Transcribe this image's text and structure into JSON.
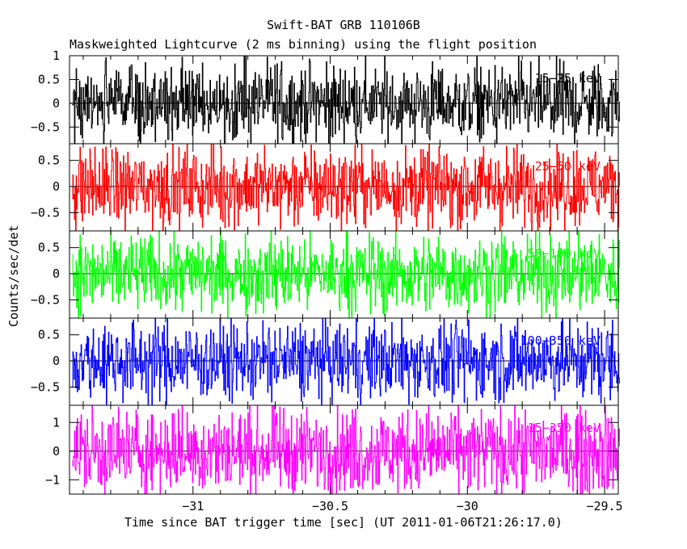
{
  "title": "Swift-BAT GRB 110106B",
  "subtitle": "Maskweighted Lightcurve (2 ms binning) using the flight position",
  "xlabel": "Time since BAT trigger time [sec] (UT 2011-01-06T21:26:17.0)",
  "ylabel": "Counts/sec/det",
  "chart_data": {
    "type": "line",
    "title": "Swift-BAT GRB 110106B",
    "subtitle": "Maskweighted Lightcurve (2 ms binning) using the flight position",
    "xlabel": "Time since BAT trigger time [sec] (UT 2011-01-06T21:26:17.0)",
    "ylabel": "Counts/sec/det",
    "xlim": [
      -31.45,
      -29.45
    ],
    "x_start": -31.44,
    "x_end": -29.444,
    "bin_width": 0.002,
    "x_ticks": [
      -31,
      -30.5,
      -30,
      -29.5
    ],
    "x_tick_labels": [
      "−31",
      "−30.5",
      "−30",
      "−29.5"
    ],
    "panels": [
      {
        "name": "15-25 keV",
        "label": "15−25 keV",
        "color": "#000000",
        "ylim": [
          -0.85,
          1.0
        ],
        "y_ticks": [
          -0.5,
          0,
          0.5,
          1
        ],
        "y_tick_labels": [
          "−0.5",
          "0",
          "0.5",
          "1"
        ],
        "amplitude": 0.42
      },
      {
        "name": "25-50 keV",
        "label": "25−50 keV",
        "color": "#ff0000",
        "ylim": [
          -0.85,
          0.82
        ],
        "y_ticks": [
          -0.5,
          0,
          0.5
        ],
        "y_tick_labels": [
          "−0.5",
          "0",
          "0.5"
        ],
        "amplitude": 0.38
      },
      {
        "name": "50-100 keV",
        "label": "50−100 keV",
        "color": "#00ff00",
        "ylim": [
          -0.85,
          0.82
        ],
        "y_ticks": [
          -0.5,
          0,
          0.5
        ],
        "y_tick_labels": [
          "−0.5",
          "0",
          "0.5"
        ],
        "amplitude": 0.38
      },
      {
        "name": "100-350 keV",
        "label": "100−350 keV",
        "color": "#0000ff",
        "ylim": [
          -0.85,
          0.82
        ],
        "y_ticks": [
          -0.5,
          0,
          0.5
        ],
        "y_tick_labels": [
          "−0.5",
          "0",
          "0.5"
        ],
        "amplitude": 0.38
      },
      {
        "name": "15-350 keV",
        "label": "15−350 keV",
        "color": "#ff00ff",
        "ylim": [
          -1.5,
          1.6
        ],
        "y_ticks": [
          -1,
          0,
          1
        ],
        "y_tick_labels": [
          "−1",
          "0",
          "1"
        ],
        "amplitude": 0.75
      }
    ]
  }
}
